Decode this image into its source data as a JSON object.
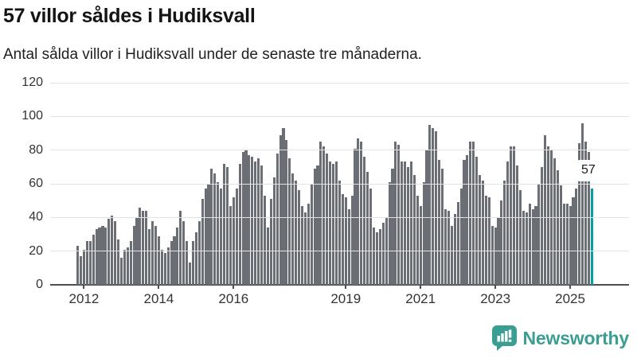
{
  "header": {
    "title": "57 villor såldes i Hudiksvall",
    "subtitle": "Antal sålda villor i Hudiksvall under de senaste tre månaderna."
  },
  "footer": {
    "brand": "Newsworthy",
    "brand_color": "#3b9e92"
  },
  "chart_data": {
    "type": "bar",
    "title": "57 villor såldes i Hudiksvall",
    "subtitle": "Antal sålda villor i Hudiksvall under de senaste tre månaderna.",
    "ylim": [
      0,
      120
    ],
    "yticks": [
      0,
      20,
      40,
      60,
      80,
      100,
      120
    ],
    "grid": "horizontal",
    "bar_color": "#6b6e74",
    "highlight_color": "#00a1a3",
    "highlight_index": 165,
    "annotation": {
      "text": "57"
    },
    "xticks": [
      {
        "label": "2012",
        "index": 2
      },
      {
        "label": "2014",
        "index": 26
      },
      {
        "label": "2016",
        "index": 50
      },
      {
        "label": "2019",
        "index": 86
      },
      {
        "label": "2021",
        "index": 110
      },
      {
        "label": "2023",
        "index": 134
      },
      {
        "label": "2025",
        "index": 158
      }
    ],
    "x_period": "monthly, Nov 2011 – Aug 2025",
    "values": [
      23,
      17,
      21,
      26,
      26,
      30,
      33,
      34,
      35,
      34,
      39,
      41,
      38,
      27,
      16,
      21,
      22,
      26,
      35,
      40,
      46,
      44,
      44,
      33,
      38,
      35,
      29,
      21,
      19,
      22,
      26,
      29,
      34,
      44,
      38,
      26,
      13,
      26,
      31,
      38,
      51,
      57,
      60,
      69,
      66,
      61,
      57,
      72,
      70,
      47,
      52,
      57,
      72,
      79,
      80,
      77,
      76,
      73,
      75,
      71,
      53,
      34,
      51,
      64,
      78,
      89,
      93,
      86,
      75,
      66,
      62,
      56,
      47,
      43,
      48,
      60,
      69,
      71,
      85,
      82,
      78,
      73,
      72,
      73,
      62,
      54,
      52,
      45,
      53,
      81,
      87,
      85,
      76,
      67,
      57,
      34,
      31,
      33,
      37,
      40,
      61,
      69,
      85,
      83,
      73,
      73,
      70,
      73,
      65,
      53,
      47,
      61,
      80,
      95,
      93,
      91,
      74,
      69,
      45,
      44,
      35,
      42,
      49,
      57,
      74,
      77,
      85,
      85,
      76,
      65,
      62,
      53,
      52,
      35,
      34,
      40,
      50,
      62,
      73,
      82,
      82,
      71,
      56,
      44,
      43,
      48,
      45,
      47,
      60,
      70,
      89,
      82,
      80,
      75,
      68,
      59,
      48,
      48,
      47,
      52,
      57,
      84,
      96,
      85,
      79,
      57
    ]
  }
}
